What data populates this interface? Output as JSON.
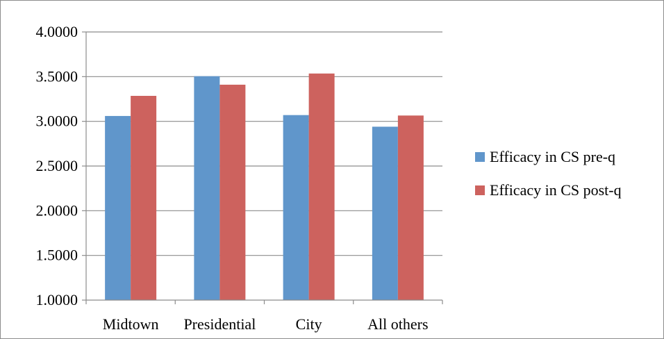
{
  "chart_data": {
    "type": "bar",
    "title": "",
    "xlabel": "",
    "ylabel": "",
    "categories": [
      "Midtown",
      "Presidential",
      "City",
      "All others"
    ],
    "series": [
      {
        "name": "Efficacy in CS pre-q",
        "color": "#6096cb",
        "values": [
          3.06,
          3.505,
          3.07,
          2.94
        ]
      },
      {
        "name": "Efficacy in CS post-q",
        "color": "#cd625e",
        "values": [
          3.285,
          3.41,
          3.535,
          3.065
        ]
      }
    ],
    "ylim": [
      1.0,
      4.0
    ],
    "yticks": [
      "1.0000",
      "1.5000",
      "2.0000",
      "2.5000",
      "3.0000",
      "3.5000",
      "4.0000"
    ],
    "grid": true,
    "legend_position": "right"
  }
}
